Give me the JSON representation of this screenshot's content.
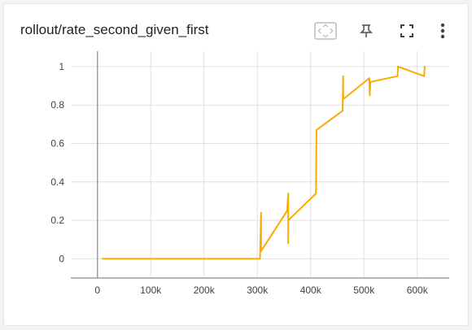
{
  "card": {
    "title": "rollout/rate_second_given_first"
  },
  "toolbar": {
    "fit_icon": "fit-domain-icon",
    "pin_icon": "pin-icon",
    "fullscreen_icon": "fullscreen-icon",
    "more_icon": "more-vert-icon"
  },
  "colors": {
    "line": "#f9ab00",
    "grid": "#e0e0e0",
    "axis": "#9e9e9e"
  },
  "chart_data": {
    "type": "line",
    "title": "rollout/rate_second_given_first",
    "xlabel": "",
    "ylabel": "",
    "xlim": [
      -50000,
      660000
    ],
    "ylim": [
      -0.1,
      1.08
    ],
    "grid": true,
    "x_ticks": [
      0,
      100000,
      200000,
      300000,
      400000,
      500000,
      600000
    ],
    "x_tick_labels": [
      "0",
      "100k",
      "200k",
      "300k",
      "400k",
      "500k",
      "600k"
    ],
    "y_ticks": [
      0,
      0.2,
      0.4,
      0.6,
      0.8,
      1
    ],
    "y_tick_labels": [
      "0",
      "0.2",
      "0.4",
      "0.6",
      "0.8",
      "1"
    ],
    "series": [
      {
        "color": "#f9ab00",
        "points": [
          [
            10000,
            0
          ],
          [
            305000,
            0
          ],
          [
            307000,
            0.24
          ],
          [
            307000,
            0.04
          ],
          [
            356000,
            0.25
          ],
          [
            358000,
            0.34
          ],
          [
            358000,
            0.08
          ],
          [
            358000,
            0.2
          ],
          [
            410000,
            0.34
          ],
          [
            411000,
            0.67
          ],
          [
            460000,
            0.77
          ],
          [
            461000,
            0.95
          ],
          [
            461000,
            0.83
          ],
          [
            510000,
            0.94
          ],
          [
            511000,
            0.85
          ],
          [
            512000,
            0.92
          ],
          [
            563000,
            0.95
          ],
          [
            564000,
            1.0
          ],
          [
            613000,
            0.95
          ],
          [
            614000,
            1.0
          ]
        ]
      }
    ]
  }
}
